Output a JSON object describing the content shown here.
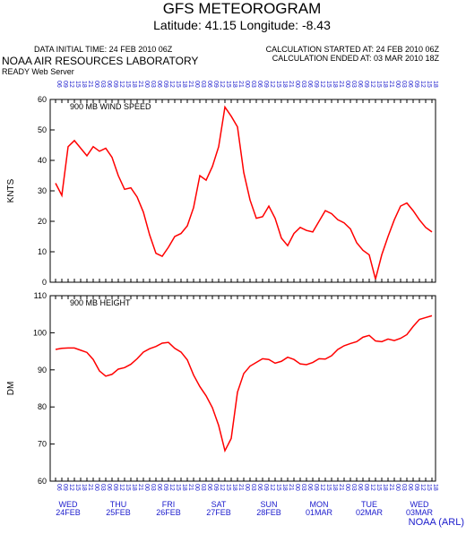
{
  "header": {
    "title": "GFS METEOROGRAM",
    "subtitle": "Latitude: 41.15 Longitude:  -8.43",
    "initial": "DATA INITIAL TIME: 24 FEB 2010 06Z",
    "started": "CALCULATION STARTED AT: 24 FEB 2010 06Z",
    "ended": "CALCULATION ENDED AT: 03 MAR 2010 18Z",
    "org": "NOAA AIR RESOURCES LABORATORY",
    "server": "READY Web Server"
  },
  "chart_data": [
    {
      "type": "line",
      "title": "900 MB  WIND SPEED",
      "y_label": "KNTS",
      "color": "#ff0000",
      "ylim": [
        0,
        60
      ],
      "yticks": [
        0,
        10,
        20,
        30,
        40,
        50,
        60
      ],
      "categories": [
        "06",
        "09",
        "12",
        "15",
        "18",
        "21",
        "00",
        "03",
        "06",
        "09",
        "12",
        "15",
        "18",
        "21",
        "00",
        "03",
        "06",
        "09",
        "12",
        "15",
        "18",
        "21",
        "00",
        "03",
        "06",
        "09",
        "12",
        "15",
        "18",
        "21",
        "00",
        "03",
        "06",
        "09",
        "12",
        "15",
        "18",
        "21",
        "00",
        "03",
        "06",
        "09",
        "12",
        "15",
        "18",
        "21",
        "00",
        "03",
        "06",
        "09",
        "12",
        "15",
        "18",
        "21",
        "00",
        "03",
        "06",
        "09",
        "12",
        "15",
        "18"
      ],
      "values": [
        32.5,
        28.5,
        44.5,
        46.5,
        44,
        41.5,
        44.5,
        43,
        44,
        41,
        35,
        30.5,
        31,
        28,
        23,
        15.5,
        9.5,
        8.5,
        11.5,
        15,
        16,
        18.5,
        24.5,
        35,
        33.5,
        38,
        44.5,
        57.5,
        54.5,
        51,
        36,
        27,
        21,
        21.5,
        25,
        21,
        14.5,
        12,
        16,
        18,
        17,
        16.5,
        20,
        23.5,
        22.5,
        20.5,
        19.5,
        17.5,
        13,
        10.5,
        9,
        1,
        9,
        15,
        20.5,
        25,
        26,
        23.5,
        20.5,
        18,
        16.5
      ]
    },
    {
      "type": "line",
      "title": "900 MB  HEIGHT",
      "y_label": "DM",
      "color": "#ff0000",
      "ylim": [
        60,
        110
      ],
      "yticks": [
        60,
        70,
        80,
        90,
        100,
        110
      ],
      "categories": [
        "06",
        "09",
        "12",
        "15",
        "18",
        "21",
        "00",
        "03",
        "06",
        "09",
        "12",
        "15",
        "18",
        "21",
        "00",
        "03",
        "06",
        "09",
        "12",
        "15",
        "18",
        "21",
        "00",
        "03",
        "06",
        "09",
        "12",
        "15",
        "18",
        "21",
        "00",
        "03",
        "06",
        "09",
        "12",
        "15",
        "18",
        "21",
        "00",
        "03",
        "06",
        "09",
        "12",
        "15",
        "18",
        "21",
        "00",
        "03",
        "06",
        "09",
        "12",
        "15",
        "18",
        "21",
        "00",
        "03",
        "06",
        "09",
        "12",
        "15",
        "18"
      ],
      "values": [
        95.5,
        95.8,
        95.9,
        95.9,
        95.3,
        94.7,
        92.8,
        89.7,
        88.3,
        88.8,
        90.2,
        90.6,
        91.5,
        93,
        94.8,
        95.7,
        96.3,
        97.2,
        97.4,
        95.8,
        94.8,
        92.7,
        88.6,
        85.5,
        83,
        79.8,
        75,
        68.2,
        71.5,
        84,
        89,
        91,
        92,
        93,
        92.8,
        91.8,
        92.3,
        93.4,
        92.8,
        91.6,
        91.4,
        92,
        93,
        92.9,
        93.8,
        95.5,
        96.5,
        97.1,
        97.6,
        98.8,
        99.3,
        97.8,
        97.6,
        98.3,
        97.9,
        98.5,
        99.5,
        101.7,
        103.6,
        104.1,
        104.6
      ],
      "day_labels": [
        [
          "WED",
          "24FEB"
        ],
        [
          "THU",
          "25FEB"
        ],
        [
          "FRI",
          "26FEB"
        ],
        [
          "SAT",
          "27FEB"
        ],
        [
          "SUN",
          "28FEB"
        ],
        [
          "MON",
          "01MAR"
        ],
        [
          "TUE",
          "02MAR"
        ],
        [
          "WED",
          "03MAR"
        ]
      ]
    }
  ],
  "footer": "NOAA (ARL)"
}
